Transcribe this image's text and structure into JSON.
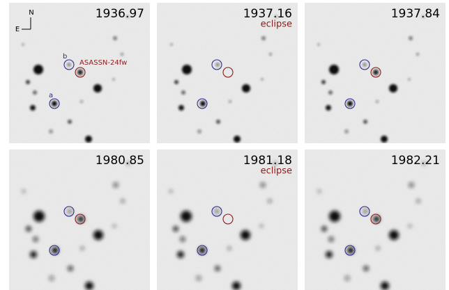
{
  "panels": [
    {
      "label": "1936.97"
    },
    {
      "label": "1937.16",
      "note": "eclipse"
    },
    {
      "label": "1937.84"
    },
    {
      "label": "1980.85"
    },
    {
      "label": "1981.18",
      "note": "eclipse"
    },
    {
      "label": "1982.21"
    }
  ],
  "compass": {
    "north": "N",
    "east": "E"
  },
  "annotations": {
    "a": "a",
    "b": "b",
    "target": "ASASSN-24fw"
  }
}
